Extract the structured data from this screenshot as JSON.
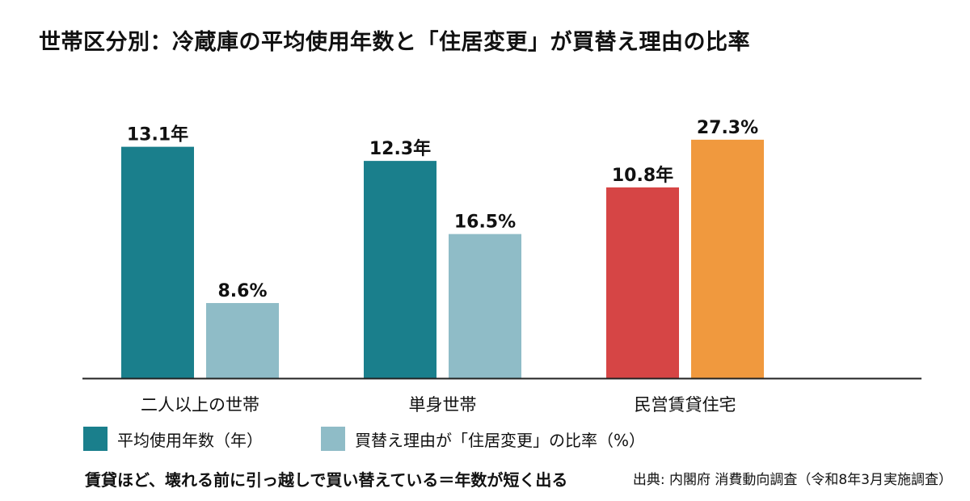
{
  "title": "世帯区分別：冷蔵庫の平均使用年数と「住居変更」が買替え理由の比率",
  "footnote": "賃貸ほど、壊れる前に引っ越しで買い替えている＝年数が短く出る",
  "source": "出典: 内閣府 消費動向調査（令和8年3月実施調査）",
  "legend": [
    {
      "label": "平均使用年数（年）",
      "color": "#1a7f8c"
    },
    {
      "label": "買替え理由が「住居変更」の比率（%）",
      "color": "#8fbcc7"
    }
  ],
  "chart_data": {
    "type": "bar",
    "categories": [
      "二人以上の世帯",
      "単身世帯",
      "民営賃貸住宅"
    ],
    "series": [
      {
        "name": "平均使用年数（年）",
        "values": [
          13.1,
          12.3,
          10.8
        ],
        "unit": "年",
        "colors": [
          "#1a7f8c",
          "#1a7f8c",
          "#d64545"
        ]
      },
      {
        "name": "買替え理由が「住居変更」の比率（%）",
        "values": [
          8.6,
          16.5,
          27.3
        ],
        "unit": "%",
        "colors": [
          "#8fbcc7",
          "#8fbcc7",
          "#f0993e"
        ]
      }
    ],
    "data_labels": [
      [
        "13.1年",
        "12.3年",
        "10.8年"
      ],
      [
        "8.6%",
        "16.5%",
        "27.3%"
      ]
    ],
    "grid": false,
    "legend_position": "bottom-left"
  }
}
